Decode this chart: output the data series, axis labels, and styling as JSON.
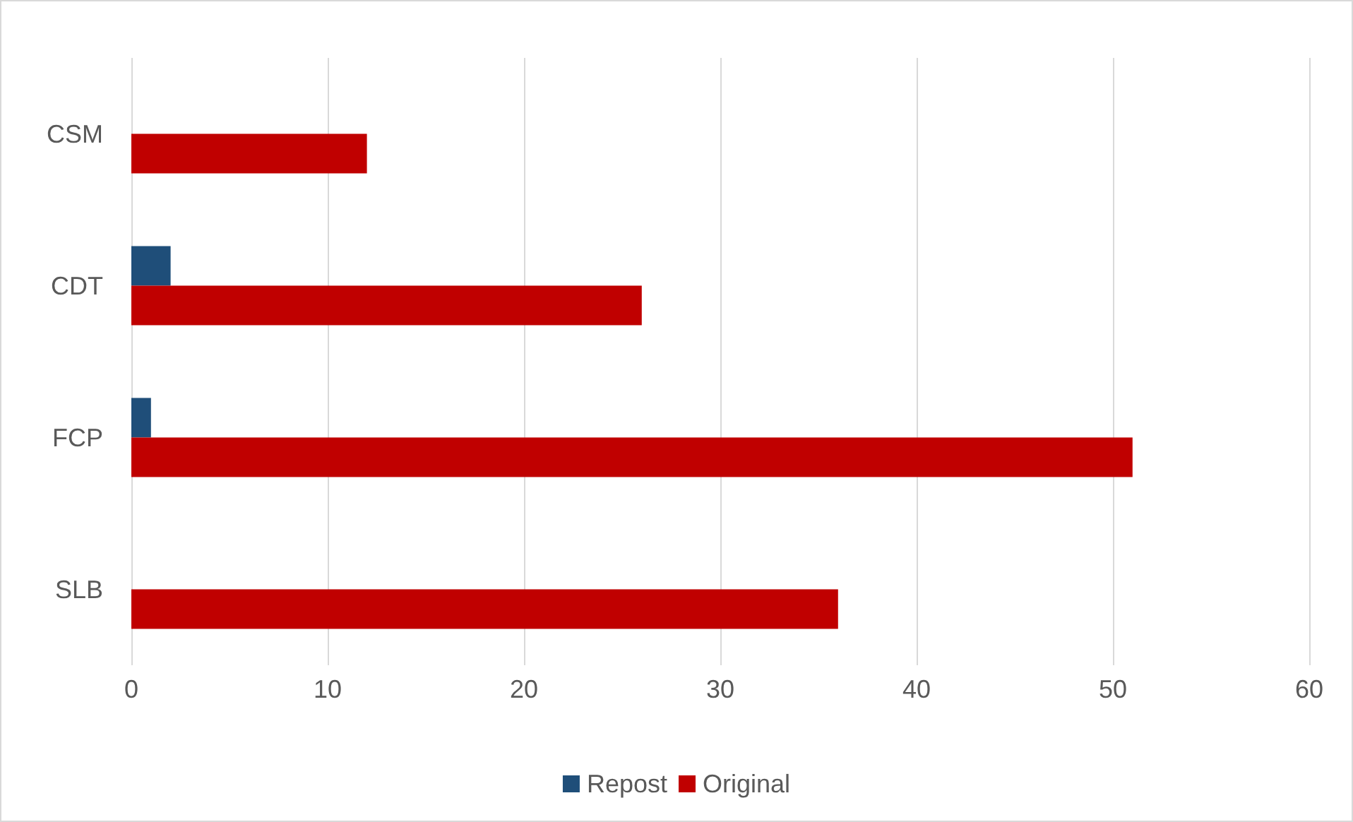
{
  "chart_data": {
    "type": "bar",
    "orientation": "horizontal",
    "categories": [
      "CSM",
      "CDT",
      "FCP",
      "SLB"
    ],
    "series": [
      {
        "name": "Repost",
        "color": "#1f4e79",
        "values": [
          0,
          2,
          1,
          0
        ]
      },
      {
        "name": "Original",
        "color": "#c00000",
        "values": [
          12,
          26,
          51,
          36
        ]
      }
    ],
    "xlim": [
      0,
      60
    ],
    "xticks": [
      0,
      10,
      20,
      30,
      40,
      50,
      60
    ],
    "grid": "x",
    "legend": "bottom"
  }
}
